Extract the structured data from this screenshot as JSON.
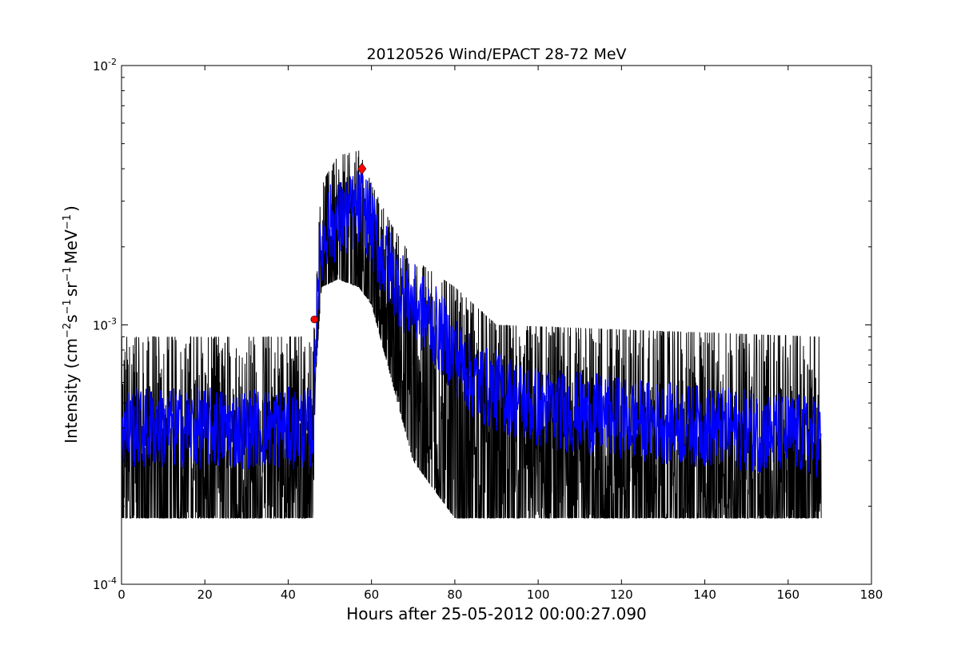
{
  "chart_data": {
    "type": "line",
    "title": "20120526 Wind/EPACT 28-72 MeV",
    "xlabel": "Hours after 25-05-2012 00:00:27.090",
    "ylabel": {
      "prefix": "Intensity (cm",
      "exp1": "−2",
      "mid1": "s",
      "exp2": "−1",
      "mid2": "sr",
      "exp3": "−1",
      "mid3": "MeV",
      "exp4": "−1",
      "suffix": ")"
    },
    "xlim": [
      0,
      180
    ],
    "ylim": [
      0.0001,
      0.01
    ],
    "yscale": "log",
    "grid": false,
    "xticks": [
      "0",
      "20",
      "40",
      "60",
      "80",
      "100",
      "120",
      "140",
      "160",
      "180"
    ],
    "yticks": [
      {
        "base": "10",
        "exp": "-4",
        "value": 0.0001
      },
      {
        "base": "10",
        "exp": "-3",
        "value": 0.001
      },
      {
        "base": "10",
        "exp": "-2",
        "value": 0.01
      }
    ],
    "series": [
      {
        "role": "raw intensity",
        "color": "#000000",
        "profile": [
          {
            "x": 0,
            "low": 0.00018,
            "high": 0.0009
          },
          {
            "x": 46,
            "low": 0.00018,
            "high": 0.0009
          },
          {
            "x": 46.5,
            "low": 0.0006,
            "high": 0.0015
          },
          {
            "x": 48,
            "low": 0.0014,
            "high": 0.0035
          },
          {
            "x": 52,
            "low": 0.0015,
            "high": 0.0045
          },
          {
            "x": 57,
            "low": 0.0014,
            "high": 0.0047
          },
          {
            "x": 60,
            "low": 0.0012,
            "high": 0.0035
          },
          {
            "x": 65,
            "low": 0.0006,
            "high": 0.0024
          },
          {
            "x": 70,
            "low": 0.0003,
            "high": 0.0018
          },
          {
            "x": 80,
            "low": 0.00018,
            "high": 0.0014
          },
          {
            "x": 90,
            "low": 0.00018,
            "high": 0.001
          },
          {
            "x": 168,
            "low": 0.00018,
            "high": 0.0009
          }
        ]
      },
      {
        "role": "smoothed intensity",
        "color": "#0000ff",
        "profile": [
          {
            "x": 0,
            "mean": 0.0004
          },
          {
            "x": 46,
            "mean": 0.0004
          },
          {
            "x": 47,
            "mean": 0.0015
          },
          {
            "x": 49,
            "mean": 0.0024
          },
          {
            "x": 54,
            "mean": 0.0026
          },
          {
            "x": 58,
            "mean": 0.0029
          },
          {
            "x": 62,
            "mean": 0.0019
          },
          {
            "x": 68,
            "mean": 0.0013
          },
          {
            "x": 75,
            "mean": 0.001
          },
          {
            "x": 85,
            "mean": 0.0006
          },
          {
            "x": 100,
            "mean": 0.00048
          },
          {
            "x": 130,
            "mean": 0.00042
          },
          {
            "x": 168,
            "mean": 0.00037
          }
        ]
      }
    ],
    "markers": [
      {
        "role": "onset",
        "x": 46.3,
        "y": 0.00105,
        "shape": "circle",
        "color": "#ff0000"
      },
      {
        "role": "peak",
        "x": 57.7,
        "y": 0.004,
        "shape": "diamond",
        "color": "#ff0000"
      }
    ]
  }
}
